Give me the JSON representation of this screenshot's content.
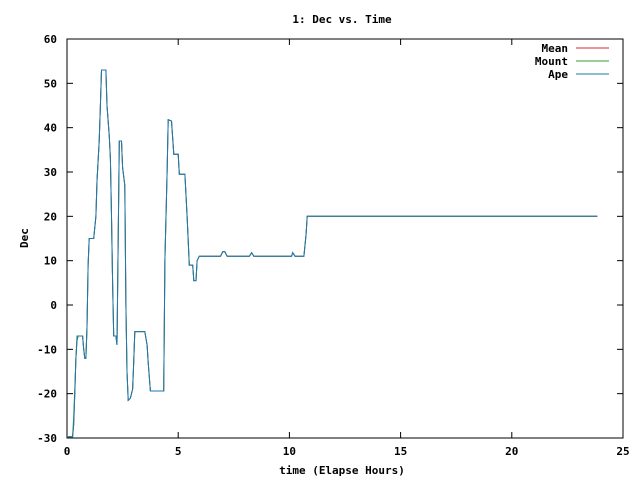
{
  "chart_data": {
    "type": "line",
    "title": "1: Dec vs. Time",
    "xlabel": "time (Elapse Hours)",
    "ylabel": "Dec",
    "xlim": [
      0,
      25
    ],
    "ylim": [
      -30,
      60
    ],
    "xticks": [
      "0",
      "5",
      "10",
      "15",
      "20",
      "25"
    ],
    "yticks": [
      "-30",
      "-20",
      "-10",
      "0",
      "10",
      "20",
      "30",
      "40",
      "50",
      "60"
    ],
    "grid": false,
    "legend_position": "top-right",
    "series": [
      {
        "name": "Mean",
        "color": "#d62728",
        "points": [
          [
            0,
            -29.7
          ],
          [
            0.25,
            -29.7
          ],
          [
            0.3,
            -27
          ],
          [
            0.35,
            -20
          ],
          [
            0.4,
            -12
          ],
          [
            0.45,
            -8
          ],
          [
            0.5,
            -7
          ],
          [
            0.7,
            -7
          ],
          [
            0.75,
            -10
          ],
          [
            0.8,
            -12
          ],
          [
            0.85,
            -12
          ],
          [
            0.9,
            -5
          ],
          [
            0.95,
            9
          ],
          [
            1.0,
            15
          ],
          [
            1.2,
            15
          ],
          [
            1.3,
            20
          ],
          [
            1.35,
            28
          ],
          [
            1.45,
            37
          ],
          [
            1.5,
            45
          ],
          [
            1.55,
            53
          ],
          [
            1.75,
            53
          ],
          [
            1.8,
            45
          ],
          [
            1.9,
            38
          ],
          [
            1.95,
            33
          ],
          [
            2.0,
            20
          ],
          [
            2.05,
            5
          ],
          [
            2.1,
            -7
          ],
          [
            2.2,
            -7
          ],
          [
            2.25,
            -9
          ],
          [
            2.3,
            15
          ],
          [
            2.35,
            37
          ],
          [
            2.45,
            37
          ],
          [
            2.5,
            31
          ],
          [
            2.6,
            27
          ],
          [
            2.65,
            0
          ],
          [
            2.7,
            -15
          ],
          [
            2.75,
            -21.5
          ],
          [
            2.85,
            -21
          ],
          [
            2.95,
            -19
          ],
          [
            3.0,
            -13
          ],
          [
            3.05,
            -6
          ],
          [
            3.5,
            -6
          ],
          [
            3.6,
            -9
          ],
          [
            3.65,
            -13
          ],
          [
            3.75,
            -19.4
          ],
          [
            4.35,
            -19.4
          ],
          [
            4.4,
            10
          ],
          [
            4.5,
            30
          ],
          [
            4.55,
            41.8
          ],
          [
            4.7,
            41.5
          ],
          [
            4.8,
            34
          ],
          [
            5.0,
            34
          ],
          [
            5.05,
            29.5
          ],
          [
            5.3,
            29.5
          ],
          [
            5.4,
            20
          ],
          [
            5.5,
            9
          ],
          [
            5.65,
            9
          ],
          [
            5.7,
            5.5
          ],
          [
            5.8,
            5.5
          ],
          [
            5.85,
            10
          ],
          [
            5.95,
            11
          ],
          [
            6.5,
            11
          ],
          [
            6.9,
            11
          ],
          [
            7.0,
            12
          ],
          [
            7.1,
            12
          ],
          [
            7.2,
            11
          ],
          [
            8.2,
            11
          ],
          [
            8.3,
            11.8
          ],
          [
            8.4,
            11
          ],
          [
            10.1,
            11
          ],
          [
            10.15,
            11.8
          ],
          [
            10.25,
            11
          ],
          [
            10.65,
            11
          ],
          [
            10.75,
            16
          ],
          [
            10.8,
            20
          ],
          [
            23.85,
            20
          ]
        ]
      },
      {
        "name": "Mount",
        "color": "#2ca02c",
        "points": [
          [
            0,
            -29.7
          ],
          [
            0.25,
            -29.7
          ],
          [
            0.3,
            -25
          ],
          [
            0.35,
            -19
          ],
          [
            0.4,
            -12
          ],
          [
            0.45,
            -7
          ],
          [
            0.5,
            -7
          ],
          [
            0.7,
            -7
          ],
          [
            0.75,
            -10
          ],
          [
            0.8,
            -12
          ],
          [
            0.85,
            -12
          ],
          [
            0.9,
            -5
          ],
          [
            0.95,
            9
          ],
          [
            1.0,
            15
          ],
          [
            1.2,
            15
          ],
          [
            1.3,
            20
          ],
          [
            1.35,
            28
          ],
          [
            1.45,
            37
          ],
          [
            1.5,
            45
          ],
          [
            1.55,
            53
          ],
          [
            1.75,
            53
          ],
          [
            1.8,
            45
          ],
          [
            1.9,
            38
          ],
          [
            1.95,
            33
          ],
          [
            2.0,
            20
          ],
          [
            2.05,
            5
          ],
          [
            2.1,
            -7
          ],
          [
            2.2,
            -7
          ],
          [
            2.25,
            -9
          ],
          [
            2.3,
            15
          ],
          [
            2.35,
            37
          ],
          [
            2.45,
            37
          ],
          [
            2.5,
            31
          ],
          [
            2.6,
            27
          ],
          [
            2.65,
            0
          ],
          [
            2.7,
            -15
          ],
          [
            2.75,
            -21.5
          ],
          [
            2.85,
            -21
          ],
          [
            2.95,
            -19
          ],
          [
            3.0,
            -13
          ],
          [
            3.05,
            -6
          ],
          [
            3.5,
            -6
          ],
          [
            3.6,
            -9
          ],
          [
            3.65,
            -13
          ],
          [
            3.75,
            -19.4
          ],
          [
            4.35,
            -19.4
          ],
          [
            4.4,
            10
          ],
          [
            4.5,
            30
          ],
          [
            4.55,
            41.8
          ],
          [
            4.7,
            41.5
          ],
          [
            4.8,
            34
          ],
          [
            5.0,
            34
          ],
          [
            5.05,
            29.5
          ],
          [
            5.3,
            29.5
          ],
          [
            5.4,
            20
          ],
          [
            5.5,
            9
          ],
          [
            5.65,
            9
          ],
          [
            5.7,
            5.5
          ],
          [
            5.8,
            5.5
          ],
          [
            5.85,
            10
          ],
          [
            5.95,
            11
          ],
          [
            6.5,
            11
          ],
          [
            6.9,
            11
          ],
          [
            7.0,
            12
          ],
          [
            7.1,
            12
          ],
          [
            7.2,
            11
          ],
          [
            8.2,
            11
          ],
          [
            8.3,
            11.8
          ],
          [
            8.4,
            11
          ],
          [
            10.1,
            11
          ],
          [
            10.15,
            11.8
          ],
          [
            10.25,
            11
          ],
          [
            10.65,
            11
          ],
          [
            10.75,
            16
          ],
          [
            10.8,
            20
          ],
          [
            23.85,
            20
          ]
        ]
      },
      {
        "name": "Ape",
        "color": "#1f77b4",
        "points": [
          [
            0,
            -29.7
          ],
          [
            0.25,
            -29.7
          ],
          [
            0.3,
            -27
          ],
          [
            0.35,
            -20
          ],
          [
            0.4,
            -12
          ],
          [
            0.45,
            -8
          ],
          [
            0.5,
            -7
          ],
          [
            0.7,
            -7
          ],
          [
            0.75,
            -10
          ],
          [
            0.8,
            -12
          ],
          [
            0.85,
            -12
          ],
          [
            0.9,
            -5
          ],
          [
            0.95,
            9
          ],
          [
            1.0,
            15
          ],
          [
            1.2,
            15
          ],
          [
            1.3,
            20
          ],
          [
            1.35,
            28
          ],
          [
            1.45,
            37
          ],
          [
            1.5,
            45
          ],
          [
            1.55,
            53
          ],
          [
            1.75,
            53
          ],
          [
            1.8,
            45
          ],
          [
            1.9,
            38
          ],
          [
            1.95,
            33
          ],
          [
            2.0,
            20
          ],
          [
            2.05,
            5
          ],
          [
            2.1,
            -7
          ],
          [
            2.2,
            -7
          ],
          [
            2.25,
            -9
          ],
          [
            2.3,
            15
          ],
          [
            2.35,
            37
          ],
          [
            2.45,
            37
          ],
          [
            2.5,
            31
          ],
          [
            2.6,
            27
          ],
          [
            2.65,
            0
          ],
          [
            2.7,
            -15
          ],
          [
            2.75,
            -21.5
          ],
          [
            2.85,
            -21
          ],
          [
            2.95,
            -19
          ],
          [
            3.0,
            -13
          ],
          [
            3.05,
            -6
          ],
          [
            3.5,
            -6
          ],
          [
            3.6,
            -9
          ],
          [
            3.65,
            -13
          ],
          [
            3.75,
            -19.4
          ],
          [
            4.35,
            -19.4
          ],
          [
            4.4,
            10
          ],
          [
            4.5,
            30
          ],
          [
            4.55,
            41.8
          ],
          [
            4.7,
            41.5
          ],
          [
            4.8,
            34
          ],
          [
            5.0,
            34
          ],
          [
            5.05,
            29.5
          ],
          [
            5.3,
            29.5
          ],
          [
            5.4,
            20
          ],
          [
            5.5,
            9
          ],
          [
            5.65,
            9
          ],
          [
            5.7,
            5.5
          ],
          [
            5.8,
            5.5
          ],
          [
            5.85,
            10
          ],
          [
            5.95,
            11
          ],
          [
            6.5,
            11
          ],
          [
            6.9,
            11
          ],
          [
            7.0,
            12
          ],
          [
            7.1,
            12
          ],
          [
            7.2,
            11
          ],
          [
            8.2,
            11
          ],
          [
            8.3,
            11.8
          ],
          [
            8.4,
            11
          ],
          [
            10.1,
            11
          ],
          [
            10.15,
            11.8
          ],
          [
            10.25,
            11
          ],
          [
            10.65,
            11
          ],
          [
            10.75,
            16
          ],
          [
            10.8,
            20
          ],
          [
            23.85,
            20
          ]
        ]
      }
    ]
  }
}
